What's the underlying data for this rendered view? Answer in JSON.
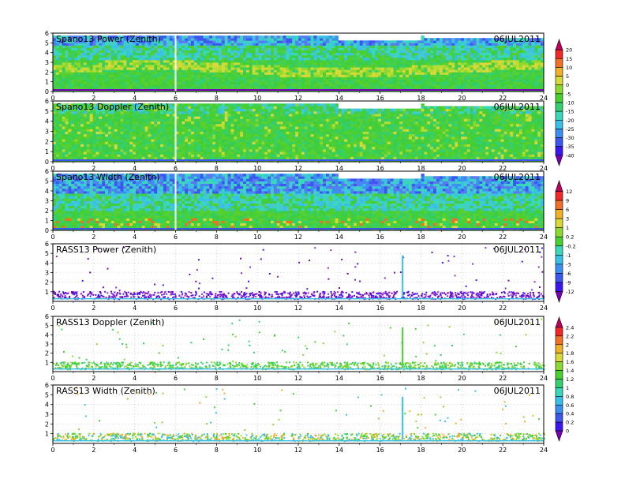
{
  "chart_data": [
    {
      "type": "heatmap",
      "title": "Spano13 Power (Zenith)",
      "date": "06JUL2011",
      "xlim": [
        0,
        24
      ],
      "ylim": [
        0,
        6
      ],
      "x_ticks": [
        "0",
        "2",
        "4",
        "6",
        "8",
        "10",
        "12",
        "14",
        "16",
        "18",
        "20",
        "22",
        "24"
      ],
      "y_ticks": [
        "0",
        "1",
        "2",
        "3",
        "4",
        "5",
        "6"
      ],
      "colorbar": "A"
    },
    {
      "type": "heatmap",
      "title": "Spano13 Doppler (Zenith)",
      "date": "06JUL2011",
      "xlim": [
        0,
        24
      ],
      "ylim": [
        0,
        6
      ],
      "x_ticks": [
        "0",
        "2",
        "4",
        "6",
        "8",
        "10",
        "12",
        "14",
        "16",
        "18",
        "20",
        "22",
        "24"
      ],
      "y_ticks": [
        "0",
        "1",
        "2",
        "3",
        "4",
        "5",
        "6"
      ],
      "colorbar": "A"
    },
    {
      "type": "heatmap",
      "title": "Spano13 Width (Zenith)",
      "date": "06JUL2011",
      "xlim": [
        0,
        24
      ],
      "ylim": [
        0,
        6
      ],
      "x_ticks": [
        "0",
        "2",
        "4",
        "6",
        "8",
        "10",
        "12",
        "14",
        "16",
        "18",
        "20",
        "22",
        "24"
      ],
      "y_ticks": [
        "0",
        "1",
        "2",
        "3",
        "4",
        "5",
        "6"
      ],
      "colorbar": "B"
    },
    {
      "type": "scatter",
      "title": "RASS13 Power (Zenith)",
      "date": "06JUL2011",
      "xlim": [
        0,
        24
      ],
      "ylim": [
        0,
        6
      ],
      "x_ticks": [
        "0",
        "2",
        "4",
        "6",
        "8",
        "10",
        "12",
        "14",
        "16",
        "18",
        "20",
        "22",
        "24"
      ],
      "y_ticks": [
        "1",
        "2",
        "3",
        "4",
        "5",
        "6"
      ],
      "colorbar": "B"
    },
    {
      "type": "scatter",
      "title": "RASS13 Doppler (Zenith)",
      "date": "06JUL2011",
      "xlim": [
        0,
        24
      ],
      "ylim": [
        0,
        6
      ],
      "x_ticks": [
        "0",
        "2",
        "4",
        "6",
        "8",
        "10",
        "12",
        "14",
        "16",
        "18",
        "20",
        "22",
        "24"
      ],
      "y_ticks": [
        "1",
        "2",
        "3",
        "4",
        "5",
        "6"
      ],
      "colorbar": "C"
    },
    {
      "type": "scatter",
      "title": "RASS13 Width (Zenith)",
      "date": "06JUL2011",
      "xlim": [
        0,
        24
      ],
      "ylim": [
        0,
        6
      ],
      "x_ticks": [
        "0",
        "2",
        "4",
        "6",
        "8",
        "10",
        "12",
        "14",
        "16",
        "18",
        "20",
        "22",
        "24"
      ],
      "y_ticks": [
        "1",
        "2",
        "3",
        "4",
        "5",
        "6"
      ],
      "colorbar": "C"
    }
  ],
  "colorbars": {
    "A": {
      "labels": [
        "20",
        "15",
        "10",
        "5",
        "0",
        "-5",
        "-10",
        "-15",
        "-20",
        "-25",
        "-30",
        "-35",
        "-40"
      ]
    },
    "B": {
      "labels": [
        "12",
        "9",
        "6",
        "3",
        "1",
        "0.2",
        "-0.2",
        "-1",
        "-3",
        "-6",
        "-9",
        "-12"
      ]
    },
    "C": {
      "labels": [
        "2.4",
        "2.2",
        "2",
        "1.8",
        "1.6",
        "1.4",
        "1.2",
        "1",
        "0.8",
        "0.6",
        "0.4",
        "0.2",
        "0"
      ]
    }
  },
  "palette": [
    "#7a00b8",
    "#3c16f0",
    "#3c56f0",
    "#3a8ff0",
    "#38c0e8",
    "#38d8b8",
    "#34d070",
    "#48d030",
    "#8cd830",
    "#d8d838",
    "#f0b028",
    "#f07028",
    "#f02828",
    "#c00060"
  ]
}
